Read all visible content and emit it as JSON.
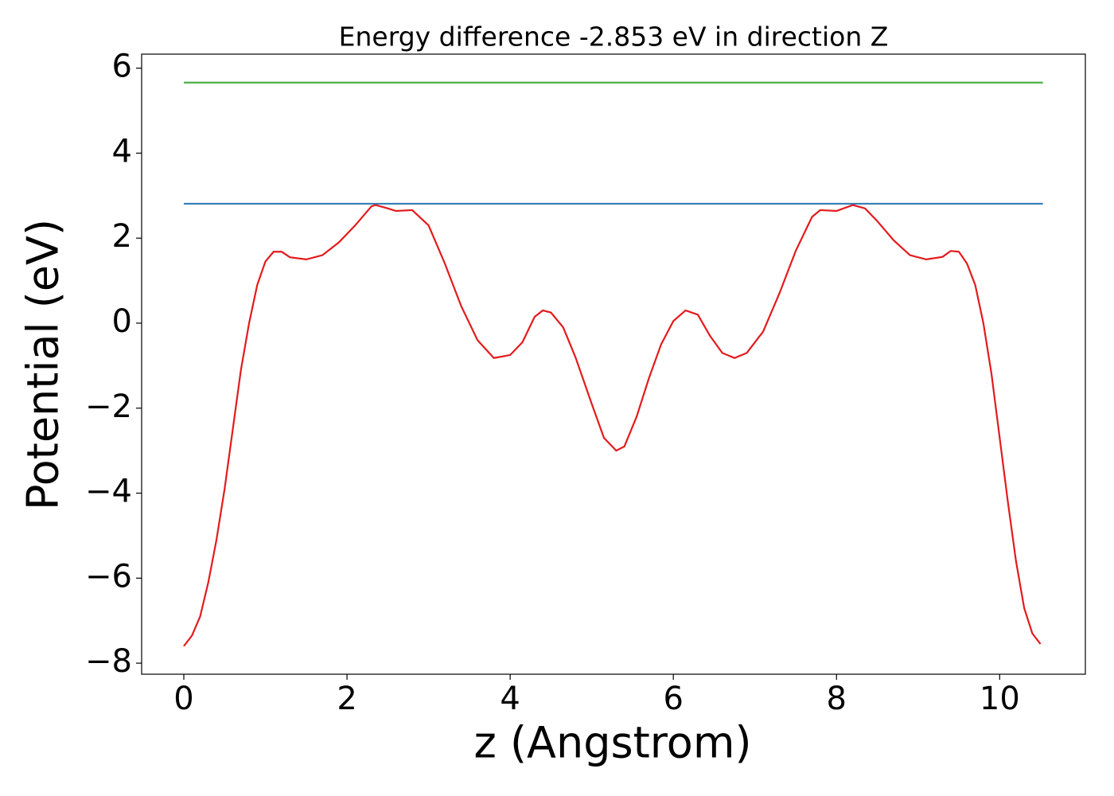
{
  "chart_data": {
    "type": "line",
    "title": "Energy difference -2.853 eV in direction Z",
    "x_label": "z (Angstrom)",
    "y_label": "Potential (eV)",
    "series": [
      {
        "color": "#4daf4a",
        "x": [
          0,
          10.53
        ],
        "values": [
          5.66,
          5.66
        ]
      },
      {
        "color": "#377eb8",
        "x": [
          0,
          10.53
        ],
        "values": [
          2.81,
          2.81
        ]
      },
      {
        "color": "#e41a1c",
        "x": [
          0,
          0.1,
          0.2,
          0.3,
          0.4,
          0.5,
          0.6,
          0.7,
          0.8,
          0.9,
          1.0,
          1.1,
          1.2,
          1.3,
          1.5,
          1.7,
          1.9,
          2.1,
          2.3,
          2.35,
          2.5,
          2.6,
          2.8,
          3.0,
          3.2,
          3.4,
          3.6,
          3.8,
          4.0,
          4.15,
          4.3,
          4.4,
          4.5,
          4.65,
          4.8,
          5.0,
          5.15,
          5.3,
          5.4,
          5.55,
          5.7,
          5.85,
          6.0,
          6.15,
          6.3,
          6.45,
          6.6,
          6.75,
          6.9,
          7.1,
          7.3,
          7.5,
          7.7,
          7.8,
          8.0,
          8.2,
          8.35,
          8.5,
          8.7,
          8.9,
          9.1,
          9.3,
          9.4,
          9.5,
          9.6,
          9.7,
          9.8,
          9.9,
          10.0,
          10.1,
          10.2,
          10.3,
          10.4,
          10.5
        ],
        "values": [
          -7.6,
          -7.35,
          -6.9,
          -6.1,
          -5.1,
          -3.9,
          -2.5,
          -1.1,
          0.0,
          0.9,
          1.45,
          1.68,
          1.68,
          1.55,
          1.5,
          1.6,
          1.9,
          2.3,
          2.75,
          2.78,
          2.7,
          2.64,
          2.66,
          2.3,
          1.4,
          0.4,
          -0.4,
          -0.82,
          -0.75,
          -0.45,
          0.15,
          0.3,
          0.25,
          -0.1,
          -0.8,
          -1.9,
          -2.7,
          -3.0,
          -2.9,
          -2.2,
          -1.3,
          -0.5,
          0.05,
          0.3,
          0.2,
          -0.3,
          -0.7,
          -0.82,
          -0.7,
          -0.2,
          0.7,
          1.7,
          2.5,
          2.66,
          2.64,
          2.78,
          2.7,
          2.4,
          1.95,
          1.6,
          1.5,
          1.56,
          1.7,
          1.68,
          1.4,
          0.9,
          0.0,
          -1.2,
          -2.7,
          -4.2,
          -5.6,
          -6.7,
          -7.3,
          -7.55
        ]
      }
    ],
    "xlim": [
      -0.517,
      11.05
    ],
    "ylim": [
      -8.26,
      6.33
    ],
    "xticks": [
      0,
      2,
      4,
      6,
      8,
      10
    ],
    "yticks": [
      {
        "value": -8,
        "label": "−8"
      },
      {
        "value": -6,
        "label": "−6"
      },
      {
        "value": -4,
        "label": "−4"
      },
      {
        "value": -2,
        "label": "−2"
      },
      0,
      2,
      4,
      6
    ],
    "grid": false
  }
}
